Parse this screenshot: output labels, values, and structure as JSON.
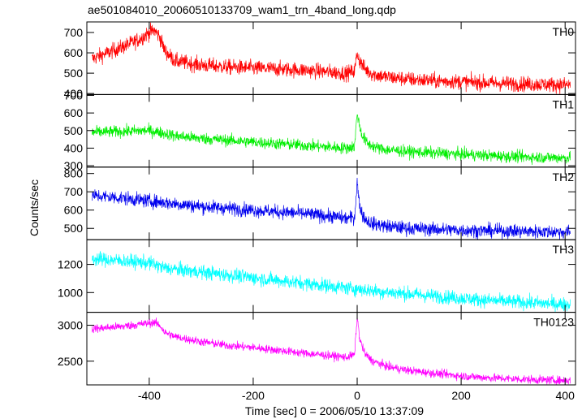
{
  "chart_data": {
    "type": "line",
    "title": "ae501084010_20060510133709_wam1_trn_4band_long.qdp",
    "xlabel": "Time [sec] 0 = 2006/05/10 13:37:09",
    "ylabel": "Counts/sec",
    "xlim": [
      -520,
      420
    ],
    "x_ticks": [
      -400,
      -200,
      0,
      200,
      400
    ],
    "x_tick_labels": [
      "-400",
      "-200",
      "0",
      "200",
      "400"
    ],
    "grid": false,
    "panels": [
      {
        "name": "TH0",
        "color": "#ff0000",
        "ylim": [
          395,
          752
        ],
        "yticks": [
          400,
          500,
          600,
          700
        ],
        "ytick_labels": [
          "400",
          "500",
          "600",
          "700"
        ],
        "x": [
          -510,
          -480,
          -450,
          -420,
          -400,
          -390,
          -380,
          -370,
          -350,
          -300,
          -250,
          -200,
          -150,
          -100,
          -50,
          -20,
          -5,
          0,
          5,
          15,
          30,
          60,
          100,
          150,
          200,
          250,
          300,
          350,
          410
        ],
        "y": [
          570,
          600,
          630,
          665,
          700,
          710,
          680,
          610,
          560,
          540,
          530,
          525,
          520,
          515,
          505,
          500,
          510,
          600,
          560,
          520,
          495,
          480,
          470,
          462,
          458,
          452,
          448,
          445,
          442
        ],
        "noise": 27
      },
      {
        "name": "TH1",
        "color": "#00ee00",
        "ylim": [
          292,
          705
        ],
        "yticks": [
          300,
          400,
          500,
          600,
          700
        ],
        "ytick_labels": [
          "300",
          "400",
          "500",
          "600",
          "700"
        ],
        "x": [
          -510,
          -450,
          -400,
          -380,
          -350,
          -300,
          -250,
          -200,
          -150,
          -100,
          -50,
          -20,
          -5,
          0,
          5,
          10,
          20,
          40,
          60,
          100,
          150,
          200,
          250,
          300,
          350,
          410
        ],
        "y": [
          490,
          495,
          500,
          490,
          470,
          455,
          445,
          435,
          425,
          415,
          405,
          400,
          410,
          600,
          520,
          470,
          425,
          400,
          390,
          380,
          372,
          365,
          358,
          352,
          348,
          345
        ],
        "noise": 24
      },
      {
        "name": "TH2",
        "color": "#0000ee",
        "ylim": [
          438,
          835
        ],
        "yticks": [
          500,
          600,
          700,
          800
        ],
        "ytick_labels": [
          "500",
          "600",
          "700",
          "800"
        ],
        "x": [
          -510,
          -450,
          -400,
          -350,
          -300,
          -250,
          -200,
          -150,
          -100,
          -50,
          -20,
          -5,
          0,
          3,
          8,
          15,
          30,
          60,
          100,
          150,
          200,
          250,
          300,
          350,
          410
        ],
        "y": [
          680,
          665,
          650,
          635,
          620,
          610,
          600,
          590,
          580,
          565,
          555,
          560,
          760,
          660,
          590,
          550,
          525,
          510,
          500,
          495,
          490,
          487,
          485,
          482,
          480
        ],
        "noise": 27
      },
      {
        "name": "TH3",
        "color": "#00ffff",
        "ylim": [
          860,
          1375
        ],
        "yticks": [
          1000,
          1200
        ],
        "ytick_labels": [
          "1000",
          "1200"
        ],
        "x": [
          -510,
          -450,
          -400,
          -370,
          -350,
          -300,
          -250,
          -200,
          -150,
          -100,
          -50,
          0,
          50,
          100,
          150,
          200,
          250,
          300,
          350,
          410
        ],
        "y": [
          1240,
          1225,
          1210,
          1175,
          1165,
          1145,
          1125,
          1105,
          1085,
          1065,
          1045,
          1025,
          1005,
          990,
          975,
          960,
          945,
          935,
          925,
          915
        ],
        "noise": 36
      },
      {
        "name": "TH0123",
        "color": "#ff00ff",
        "ylim": [
          2170,
          3180
        ],
        "yticks": [
          2500,
          3000
        ],
        "ytick_labels": [
          "2500",
          "3000"
        ],
        "x": [
          -510,
          -450,
          -400,
          -390,
          -380,
          -370,
          -350,
          -300,
          -250,
          -200,
          -150,
          -100,
          -50,
          -20,
          -5,
          0,
          5,
          15,
          30,
          60,
          100,
          150,
          200,
          250,
          300,
          350,
          410
        ],
        "y": [
          2950,
          2985,
          3030,
          3040,
          3000,
          2900,
          2840,
          2770,
          2720,
          2690,
          2650,
          2610,
          2575,
          2555,
          2590,
          3120,
          2800,
          2600,
          2500,
          2420,
          2370,
          2330,
          2295,
          2270,
          2255,
          2240,
          2230
        ],
        "noise": 42
      }
    ]
  }
}
